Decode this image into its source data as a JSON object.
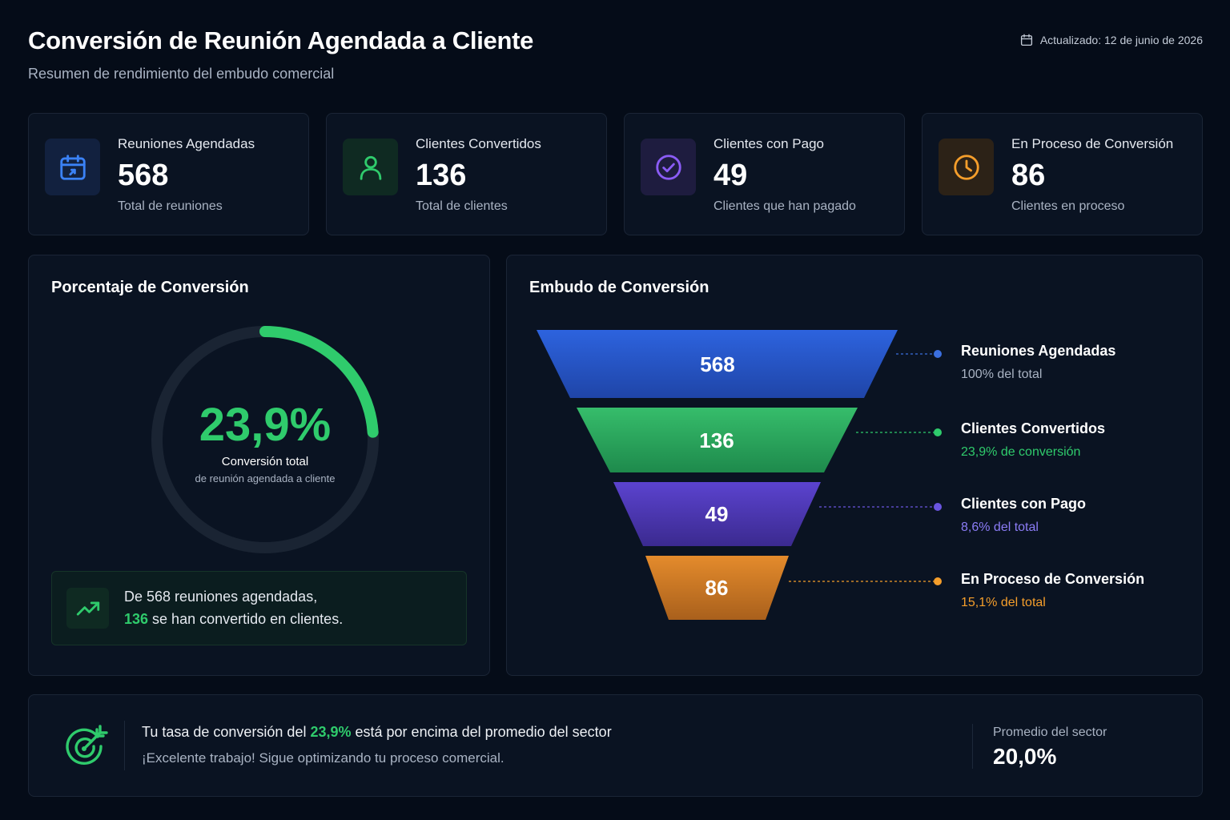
{
  "header": {
    "title": "Conversión de Reunión Agendada a Cliente",
    "subtitle": "Resumen de rendimiento del embudo comercial",
    "updated": "Actualizado: 12 de junio de 2026",
    "updated_icon": "calendar-icon"
  },
  "kpis": [
    {
      "label": "Reuniones Agendadas",
      "value": "568",
      "sub": "Total de reuniones",
      "icon": "calendar-icon",
      "color": "#3b82f6",
      "bg": "#12213f"
    },
    {
      "label": "Clientes Convertidos",
      "value": "136",
      "sub": "Total de clientes",
      "icon": "user-icon",
      "color": "#2fcb6c",
      "bg": "#0f2a22"
    },
    {
      "label": "Clientes con Pago",
      "value": "49",
      "sub": "Clientes que han pagado",
      "icon": "check-circle-icon",
      "color": "#8b5cf6",
      "bg": "#1e1c3f"
    },
    {
      "label": "En Proceso de Conversión",
      "value": "86",
      "sub": "Clientes en proceso",
      "icon": "clock-icon",
      "color": "#f59e2b",
      "bg": "#2c2217"
    }
  ],
  "conversion_panel": {
    "title": "Porcentaje de Conversión",
    "percent_text": "23,9%",
    "percent_value": 23.9,
    "label": "Conversión total",
    "sublabel": "de reunión agendada a cliente",
    "color": "#2fcb6c",
    "summary_icon": "trending-up-icon",
    "summary_line1": "De 568 reuniones agendadas,",
    "summary_line2_highlight": "136",
    "summary_line2_rest": " se han convertido en clientes."
  },
  "funnel_panel": {
    "title": "Embudo de Conversión",
    "stages": [
      {
        "value": "568",
        "name": "Reuniones Agendadas",
        "sub": "100% del total",
        "color": "#2b5fd9",
        "sub_color": "#a9b3c3"
      },
      {
        "value": "136",
        "name": "Clientes Convertidos",
        "sub": "23,9% de conversión",
        "color": "#2fb867",
        "sub_color": "#2fcb6c"
      },
      {
        "value": "49",
        "name": "Clientes con Pago",
        "sub": "8,6% del total",
        "color": "#5a3fc4",
        "sub_color": "#8b7cf6"
      },
      {
        "value": "86",
        "name": "En Proceso de Conversión",
        "sub": "15,1% del total",
        "color": "#d97f26",
        "sub_color": "#f59e2b"
      }
    ]
  },
  "banner": {
    "icon": "target-icon",
    "msg_prefix": "Tu tasa de conversión del ",
    "msg_highlight": "23,9%",
    "msg_suffix": " está por encima del promedio del sector",
    "msg2": "¡Excelente trabajo! Sigue optimizando tu proceso comercial.",
    "avg_label": "Promedio del sector",
    "avg_value": "20,0%"
  }
}
